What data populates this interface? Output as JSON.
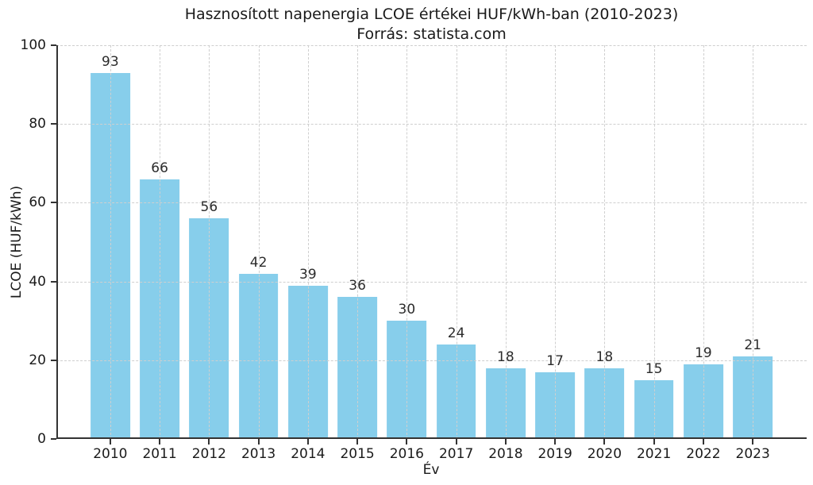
{
  "chart_data": {
    "type": "bar",
    "title": "Hasznosított napenergia LCOE értékei HUF/kWh-ban (2010-2023)",
    "subtitle": "Forrás: statista.com",
    "xlabel": "Év",
    "ylabel": "LCOE (HUF/kWh)",
    "categories": [
      "2010",
      "2011",
      "2012",
      "2013",
      "2014",
      "2015",
      "2016",
      "2017",
      "2018",
      "2019",
      "2020",
      "2021",
      "2022",
      "2023"
    ],
    "values": [
      93,
      66,
      56,
      42,
      39,
      36,
      30,
      24,
      18,
      17,
      18,
      15,
      19,
      21
    ],
    "ylim": [
      0,
      100
    ],
    "yticks": [
      0,
      20,
      40,
      60,
      80,
      100
    ],
    "bar_color": "#87CEEB",
    "grid": "on",
    "grid_style": "dashed",
    "legend": "none"
  }
}
